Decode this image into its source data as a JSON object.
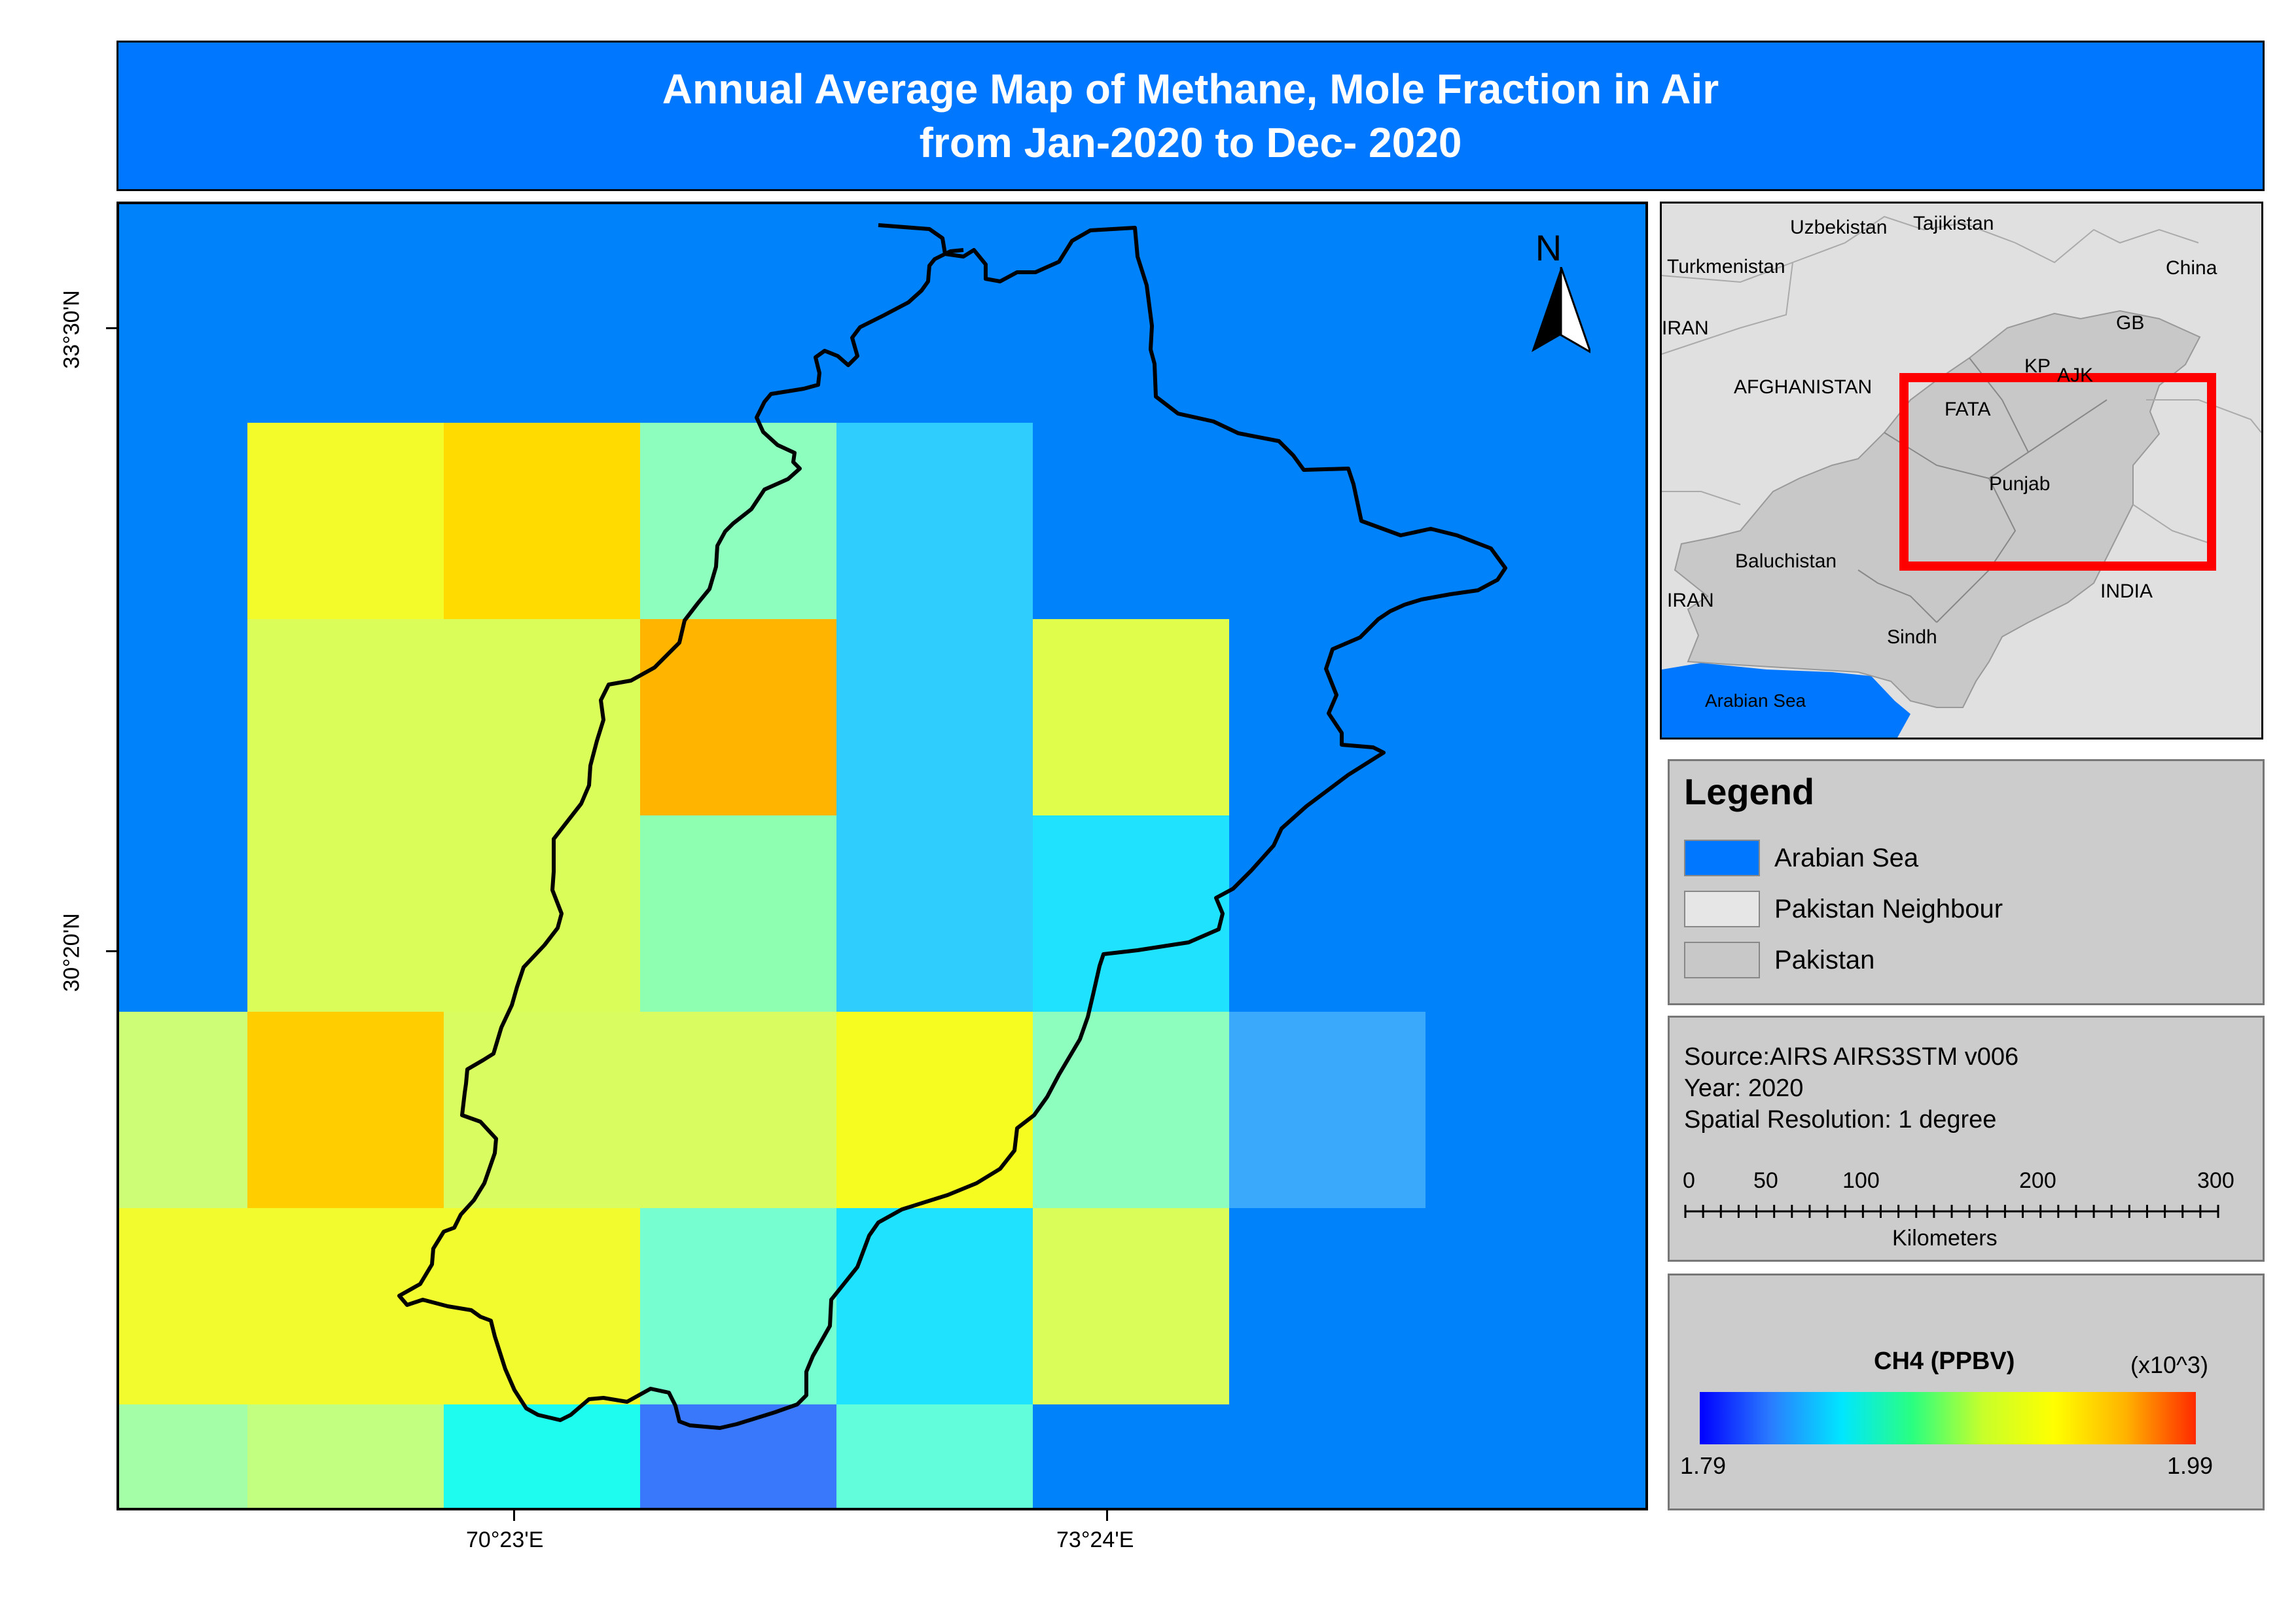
{
  "title": {
    "line1": "Annual Average Map of Methane, Mole Fraction in Air",
    "line2": "from Jan-2020 to Dec- 2020"
  },
  "map": {
    "north_arrow": "N",
    "lat_labels": [
      "33°30'N",
      "30°20'N"
    ],
    "lon_labels": [
      "70°23'E",
      "73°24'E"
    ],
    "background_color": "#0082fb",
    "grid": {
      "rows": [
        [
          "#0082fb",
          "#0082fb",
          "#0082fb",
          "#0082fb",
          "#0082fb",
          "#0082fb",
          "#0082fb",
          "#0082fb"
        ],
        [
          "#0082fb",
          "#f4fb2a",
          "#ffdb00",
          "#8efebe",
          "#2ecdfd",
          "#0082fb",
          "#0082fb",
          "#0082fb"
        ],
        [
          "#0082fb",
          "#dbfd5a",
          "#dbfd5a",
          "#ffb400",
          "#2ecdfd",
          "#e0fd4c",
          "#0082fb",
          "#0082fb"
        ],
        [
          "#0082fb",
          "#dbfd5a",
          "#dbfd5a",
          "#8efeb0",
          "#2ecdfd",
          "#1fe3fe",
          "#0082fb",
          "#0082fb"
        ],
        [
          "#cdfd77",
          "#ffcd00",
          "#d9fd60",
          "#d9fd60",
          "#f6fb20",
          "#8efebe",
          "#3aa9fb",
          "#0082fb"
        ],
        [
          "#f2fb2e",
          "#f2fb2e",
          "#f2fb2e",
          "#76fed0",
          "#1fe3fe",
          "#dbfd5a",
          "#0082fb",
          "#0082fb"
        ],
        [
          "#a4fea8",
          "#c2fe80",
          "#1efbef",
          "#3a78fb",
          "#62fedc",
          "#0082fb",
          "#0082fb",
          "#0082fb"
        ]
      ]
    }
  },
  "inset": {
    "labels": {
      "uzbekistan": "Uzbekistan",
      "tajikistan": "Tajikistan",
      "turkmenistan": "Turkmenistan",
      "china": "China",
      "iran_north": "IRAN",
      "gb": "GB",
      "kp": "KP",
      "ajk": "AJK",
      "afghanistan": "AFGHANISTAN",
      "fata": "FATA",
      "punjab": "Punjab",
      "baluchistan": "Baluchistan",
      "iran_south": "IRAN",
      "india": "INDIA",
      "sindh": "Sindh",
      "arabian_sea": "Arabian Sea"
    },
    "colors": {
      "neighbour": "#e0e0e0",
      "pakistan": "#c8c8c8",
      "sea": "#0077ff",
      "extent_box": "#ff0000"
    }
  },
  "legend": {
    "title": "Legend",
    "items": [
      {
        "label": "Arabian Sea",
        "color": "#0077ff"
      },
      {
        "label": "Pakistan Neighbour",
        "color": "#e6e6e6"
      },
      {
        "label": "Pakistan",
        "color": "#c8c8c8"
      }
    ]
  },
  "info": {
    "source": "Source:AIRS AIRS3STM v006",
    "year": "Year: 2020",
    "resolution": "Spatial Resolution: 1  degree"
  },
  "scale_bar": {
    "ticks": [
      "0",
      "50",
      "100",
      "200",
      "300"
    ],
    "unit": "Kilometers"
  },
  "colorbar": {
    "title": "CH4 (PPBV)",
    "multiplier": "(x10^3)",
    "min": "1.79",
    "max": "1.99"
  }
}
